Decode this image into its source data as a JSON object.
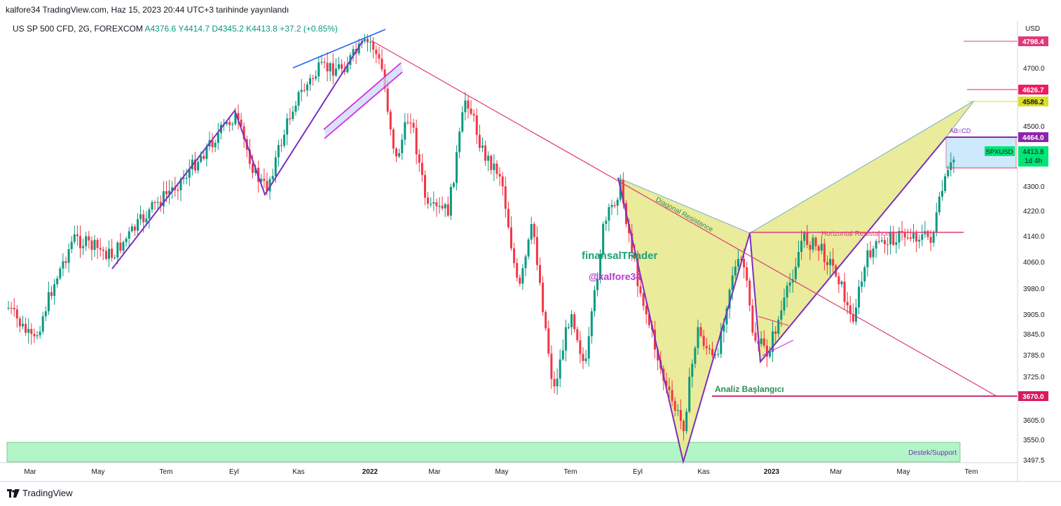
{
  "header": {
    "title": "kalfore34 TradingView.com, Haz 15, 2023 20:44 UTC+3 tarihinde yayınlandı"
  },
  "legend": {
    "symbol": "US SP 500 CFD, 2G, FOREXCOM",
    "open": "A4376.6",
    "high": "Y4414.7",
    "low": "D4345.2",
    "close": "K4413.8",
    "change": "+37.2 (+0.85%)"
  },
  "footer": {
    "brand": "TradingView"
  },
  "colors": {
    "up": "#089981",
    "down": "#f23645",
    "pattern_fill": "#e6e88a",
    "pattern_line": "#7b2fbe",
    "trend_line": "#e0397a",
    "support_fill": "#b2f5c8",
    "channel_blue": "#2962ff",
    "channel_magenta": "#d02de0",
    "target_zone": "#cde9fb"
  },
  "chart_data": {
    "type": "candlestick",
    "currency": "USD",
    "y_axis_label": "USD",
    "x_tick_labels": [
      "Mar",
      "May",
      "Tem",
      "Eyl",
      "Kas",
      "2022",
      "Mar",
      "May",
      "Tem",
      "Eyl",
      "Kas",
      "2023",
      "Mar",
      "May",
      "Tem"
    ],
    "y_tick_labels": [
      "4700.0",
      "4500.0",
      "4300.0",
      "4220.0",
      "4140.0",
      "4060.0",
      "3980.0",
      "3905.0",
      "3845.0",
      "3785.0",
      "3725.0",
      "3605.0",
      "3550.0",
      "3497.5"
    ],
    "price_tags": [
      {
        "value": "4798.4",
        "color": "#e0397a",
        "text_color": "#ffffff"
      },
      {
        "value": "4626.7",
        "color": "#e91e63",
        "text_color": "#ffffff"
      },
      {
        "value": "4586.2",
        "color": "#d9e021",
        "text_color": "#131722"
      },
      {
        "value": "4464.0",
        "color": "#8e24aa",
        "text_color": "#ffffff"
      },
      {
        "value": "4413.8",
        "color": "#00e676",
        "text_color": "#131722",
        "symbol": "SPXUSD",
        "countdown": "1d 4h"
      },
      {
        "value": "3670.0",
        "color": "#d81b60",
        "text_color": "#ffffff"
      }
    ],
    "annotations": {
      "diagonal_resistance": "Diagonal Resistance",
      "horizontal_resistance": "Horizontal Resistance",
      "abcd": "AB=CD",
      "analysis_start": "Analiz Başlangıcı",
      "support": "Destek/Support",
      "watermark_name": "finansalTRader",
      "watermark_handle": "@kalfore34"
    },
    "swing_points": [
      {
        "label": "L",
        "date": "2021-04",
        "price": 4040
      },
      {
        "label": "H",
        "date": "2021-08",
        "price": 4540
      },
      {
        "label": "L",
        "date": "2021-09",
        "price": 4310
      },
      {
        "label": "H",
        "date": "2022-01",
        "price": 4810
      },
      {
        "label": "H",
        "date": "2022-08",
        "price": 4320
      },
      {
        "label": "L",
        "date": "2022-10",
        "price": 3490
      },
      {
        "label": "H",
        "date": "2022-12",
        "price": 4150
      },
      {
        "label": "L",
        "date": "2022-12",
        "price": 3765
      },
      {
        "label": "D",
        "date": "2023-06",
        "price": 4464
      }
    ]
  }
}
